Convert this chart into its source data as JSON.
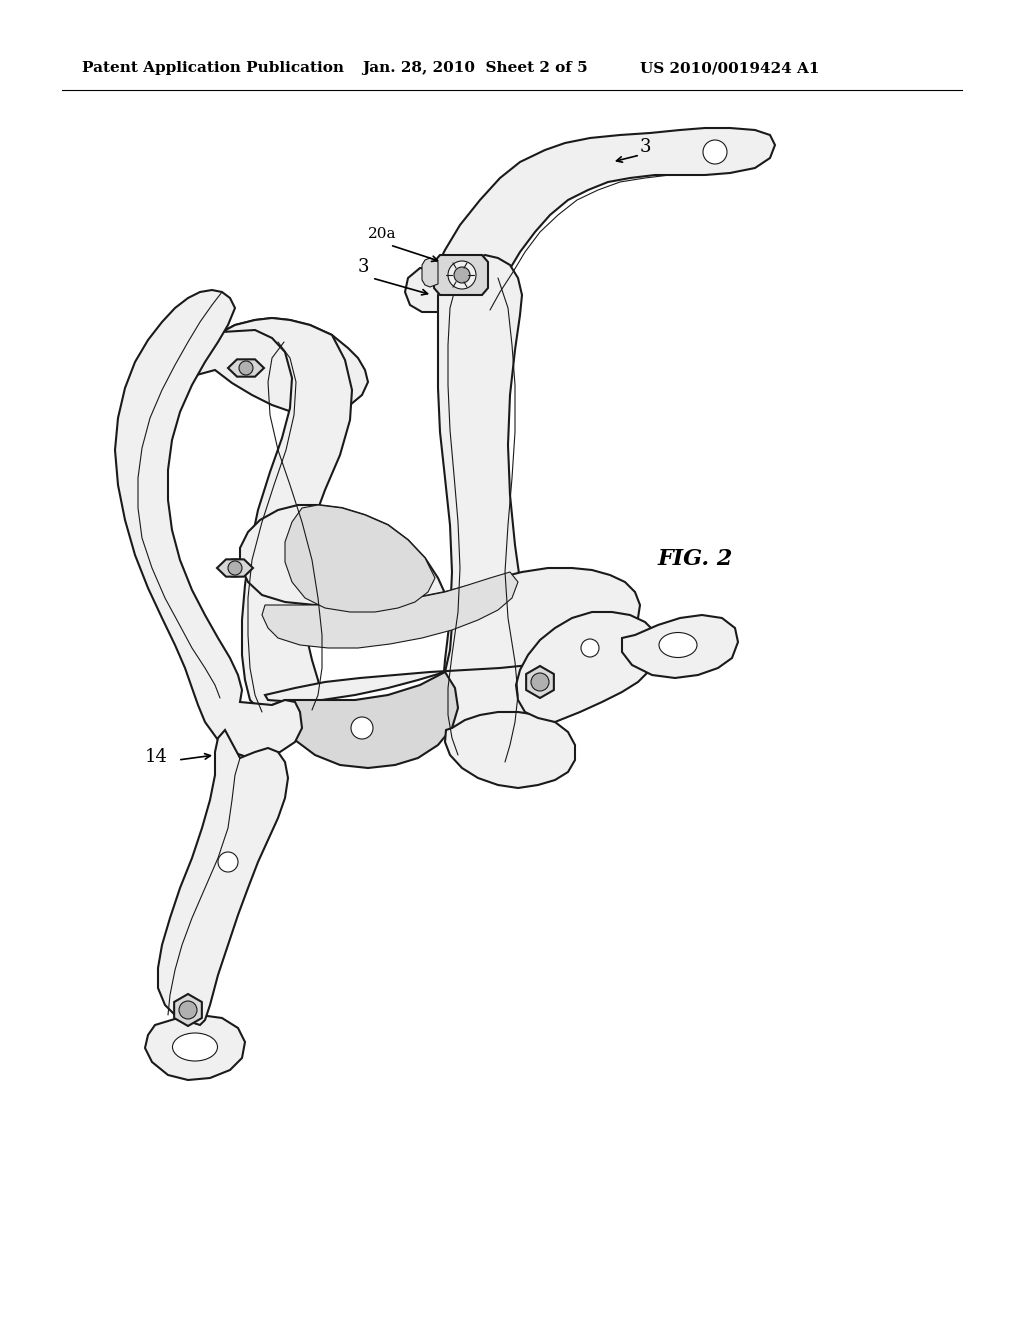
{
  "bg_color": "#ffffff",
  "header_left": "Patent Application Publication",
  "header_mid": "Jan. 28, 2010  Sheet 2 of 5",
  "header_right": "US 2010/0019424 A1",
  "fig_label": "FIG. 2",
  "label_14": "14",
  "label_3a": "3",
  "label_20a": "20a",
  "label_3b": "3",
  "line_color": "#1a1a1a",
  "fill_white": "#ffffff",
  "fill_light": "#f0f0f0",
  "fill_mid": "#d8d8d8",
  "fill_dark": "#b0b0b0",
  "header_fontsize": 11,
  "label_fontsize": 13,
  "fig_fontsize": 16,
  "lw_main": 1.5,
  "lw_thin": 0.8,
  "lw_thick": 2.2
}
